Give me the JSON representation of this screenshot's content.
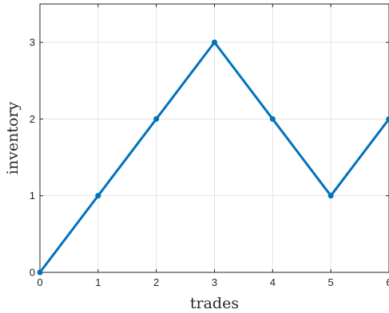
{
  "chart_data": {
    "type": "line",
    "xlabel": "trades",
    "ylabel": "inventory",
    "xlim": [
      0,
      6
    ],
    "ylim": [
      0,
      3.5
    ],
    "x_ticks": [
      0,
      1,
      2,
      3,
      4,
      5,
      6
    ],
    "y_ticks": [
      0,
      1,
      2,
      3
    ],
    "x_tick_labels": [
      "0",
      "1",
      "2",
      "3",
      "4",
      "5",
      "6"
    ],
    "y_tick_labels": [
      "0",
      "1",
      "2",
      "3"
    ],
    "grid": true,
    "series": [
      {
        "x": [
          0,
          1,
          2,
          3,
          4,
          5,
          6
        ],
        "y": [
          0,
          1,
          2,
          3,
          2,
          1,
          2
        ],
        "color": "#0072BD",
        "marker": "circle"
      }
    ]
  }
}
